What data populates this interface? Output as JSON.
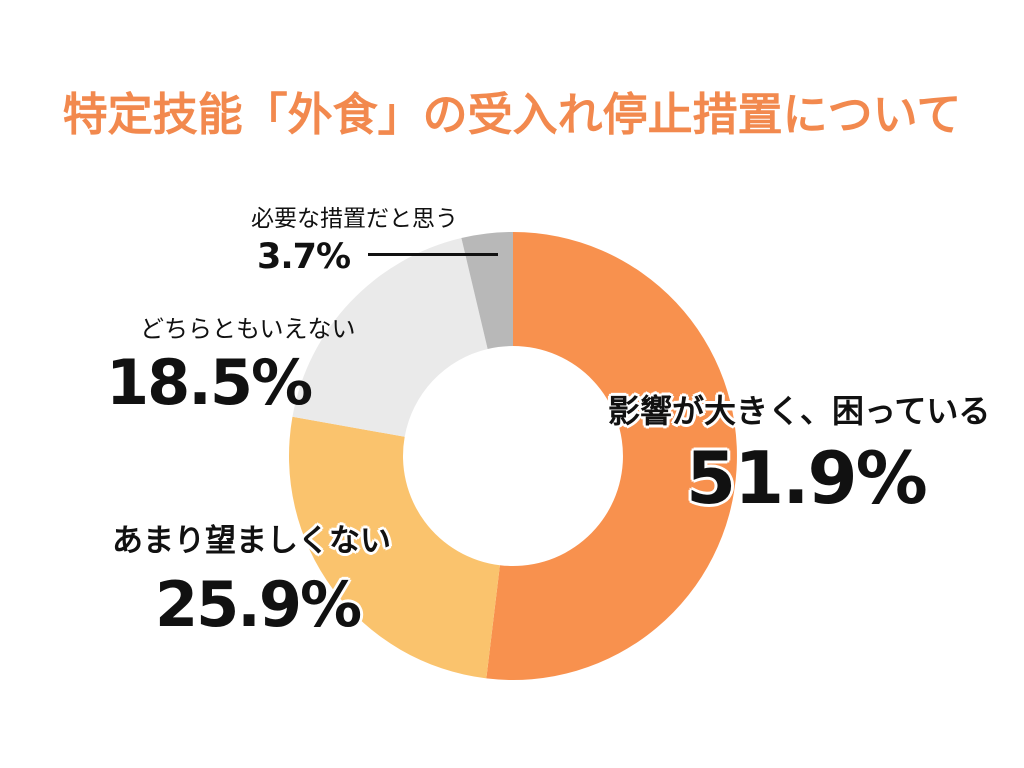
{
  "theme": {
    "background": "#FFFFFF",
    "title_color": "#F2894E",
    "text_color": "#111111",
    "label_outline_color": "#FFFFFF"
  },
  "title": {
    "text": "特定技能「外食」の受入れ停止措置について"
  },
  "callouts": {
    "affected": {
      "label": "影響が大きく、困っている",
      "value": "51.9%"
    },
    "undesirable": {
      "label": "あまり望ましくない",
      "value": "25.9%"
    },
    "neither": {
      "label": "どちらともいえない",
      "value": "18.5%"
    },
    "necessary": {
      "label": "必要な措置だと思う",
      "value": "3.7%"
    }
  },
  "chart_data": {
    "type": "pie",
    "subtype": "donut",
    "title": "特定技能「外食」の受入れ停止措置について",
    "categories": [
      "影響が大きく、困っている",
      "あまり望ましくない",
      "どちらともいえない",
      "必要な措置だと思う"
    ],
    "values": [
      51.9,
      25.9,
      18.5,
      3.7
    ],
    "unit": "%",
    "colors": [
      "#F8914E",
      "#FAC36D",
      "#EAEAEA",
      "#B8B8B8"
    ],
    "start_angle_deg": 0,
    "direction": "clockwise",
    "inner_radius_ratio": 0.49,
    "legend_position": "none",
    "label_style": "callouts-with-percent"
  }
}
